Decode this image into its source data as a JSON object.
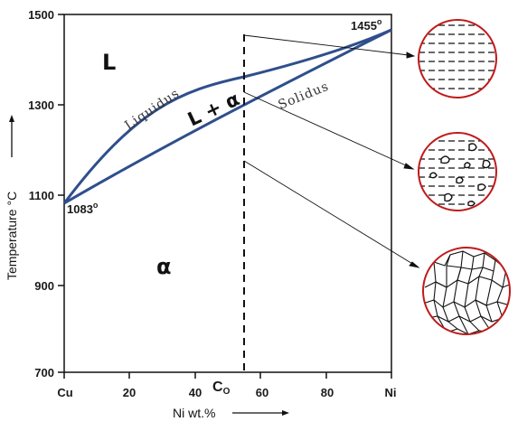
{
  "diagram": {
    "y_axis_title": "Temperature °C",
    "x_axis_title": "Ni wt.%",
    "y_ticks": [
      "1500",
      "1300",
      "1100",
      "900",
      "700"
    ],
    "x_ticks": [
      "Cu",
      "20",
      "40",
      "60",
      "80",
      "Ni"
    ],
    "composition_label": "C",
    "composition_subscript": "O",
    "phase_labels": {
      "liquid": "L",
      "two_phase": "L + α",
      "solid": "α"
    },
    "curve_labels": {
      "liquidus": "Liquidus",
      "solidus": "Solidus"
    },
    "point_labels": {
      "cu_melting": "1083",
      "ni_melting": "1455",
      "degree_mark": "o"
    },
    "colors": {
      "curve": "#2f4f8c",
      "circle_border": "#c01a1a",
      "ink": "#111111"
    }
  }
}
